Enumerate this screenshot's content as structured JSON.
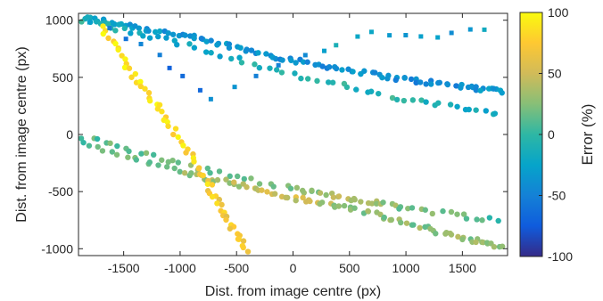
{
  "chart_data": {
    "type": "scatter",
    "title": "",
    "xlabel": "Dist. from image centre (px)",
    "ylabel": "Dist. from image centre (px)",
    "xlim": [
      -1900,
      1900
    ],
    "ylim": [
      -1060,
      1060
    ],
    "xticks": [
      -1500,
      -1000,
      -500,
      0,
      500,
      1000,
      1500
    ],
    "yticks": [
      -1000,
      -500,
      0,
      500,
      1000
    ],
    "grid": false,
    "colorbar": {
      "label": "Error (%)",
      "range": [
        -100,
        100
      ],
      "ticks": [
        -100,
        -50,
        0,
        50,
        100
      ],
      "colormap": "parula",
      "colors": [
        "#352a87",
        "#0f5cdd",
        "#1481d6",
        "#06a4ca",
        "#2eb7a4",
        "#87bf77",
        "#d1bb59",
        "#fec832",
        "#f9fb0e"
      ]
    },
    "series": [
      {
        "marker": "circle",
        "description_points": [
          [
            -1850,
            1020,
            -20
          ],
          [
            -1500,
            960,
            -30
          ],
          [
            -1000,
            870,
            -35
          ],
          [
            -500,
            760,
            -40
          ],
          [
            0,
            650,
            -45
          ],
          [
            500,
            560,
            -40
          ],
          [
            1000,
            480,
            -45
          ],
          [
            1500,
            420,
            -40
          ],
          [
            1880,
            380,
            -35
          ]
        ],
        "trend": "descending"
      },
      {
        "marker": "circle",
        "description_points": [
          [
            -1850,
            1000,
            -10
          ],
          [
            -1000,
            800,
            -20
          ],
          [
            0,
            520,
            -10
          ],
          [
            1000,
            300,
            -5
          ],
          [
            1880,
            180,
            -15
          ]
        ],
        "trend": "descending"
      },
      {
        "marker": "circle",
        "description_points": [
          [
            -1850,
            -20,
            10
          ],
          [
            -1000,
            -260,
            20
          ],
          [
            0,
            -480,
            15
          ],
          [
            500,
            -560,
            40
          ],
          [
            1000,
            -640,
            20
          ],
          [
            1880,
            -760,
            5
          ]
        ],
        "trend": "descending"
      },
      {
        "marker": "circle",
        "description_points": [
          [
            -1850,
            -80,
            15
          ],
          [
            -1000,
            -330,
            30
          ],
          [
            -500,
            -430,
            40
          ],
          [
            0,
            -560,
            50
          ],
          [
            500,
            -640,
            30
          ],
          [
            1000,
            -780,
            25
          ],
          [
            1500,
            -900,
            30
          ],
          [
            1880,
            -1000,
            25
          ]
        ],
        "trend": "descending"
      },
      {
        "marker": "circle",
        "description_points": [
          [
            -1700,
            950,
            90
          ],
          [
            -1400,
            500,
            95
          ],
          [
            -1100,
            100,
            85
          ],
          [
            -800,
            -350,
            80
          ],
          [
            -600,
            -700,
            70
          ],
          [
            -400,
            -1050,
            75
          ]
        ],
        "trend": "diagonal-high-error"
      },
      {
        "marker": "square",
        "description_points": [
          [
            -1800,
            1000,
            -40
          ],
          [
            -1200,
            700,
            -60
          ],
          [
            -700,
            300,
            -50
          ],
          [
            100,
            700,
            -30
          ],
          [
            700,
            900,
            -20
          ],
          [
            1300,
            850,
            -30
          ],
          [
            1800,
            950,
            -25
          ]
        ],
        "trend": "sparse"
      }
    ]
  }
}
